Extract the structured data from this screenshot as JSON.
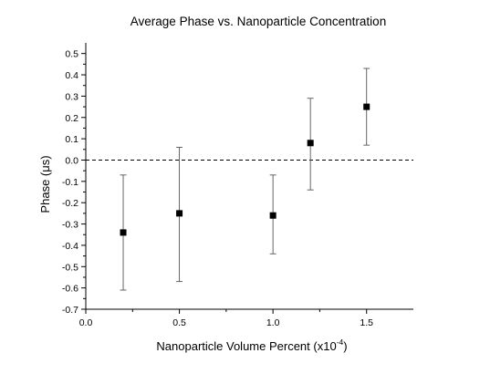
{
  "chart_data": {
    "type": "scatter",
    "title": "Average Phase vs. Nanoparticle Concentration",
    "xlabel_main": "Nanoparticle Volume Percent (x10",
    "xlabel_sup": "-4",
    "xlabel_close": ")",
    "ylabel": "Phase (μs)",
    "xlim": [
      0.0,
      1.75
    ],
    "ylim": [
      -0.7,
      0.55
    ],
    "x_ticks": [
      0.0,
      0.5,
      1.0,
      1.5
    ],
    "x_tick_labels": [
      "0.0",
      "0.5",
      "1.0",
      "1.5"
    ],
    "y_ticks": [
      -0.7,
      -0.6,
      -0.5,
      -0.4,
      -0.3,
      -0.2,
      -0.1,
      0.0,
      0.1,
      0.2,
      0.3,
      0.4,
      0.5
    ],
    "y_tick_labels": [
      "-0.7",
      "-0.6",
      "-0.5",
      "-0.4",
      "-0.3",
      "-0.2",
      "-0.1",
      "0.0",
      "0.1",
      "0.2",
      "0.3",
      "0.4",
      "0.5"
    ],
    "reference_line": {
      "y": 0.0,
      "style": "dashed"
    },
    "grid": false,
    "points": [
      {
        "x": 0.2,
        "y": -0.34,
        "y_low": -0.61,
        "y_high": -0.07
      },
      {
        "x": 0.5,
        "y": -0.25,
        "y_low": -0.57,
        "y_high": 0.06
      },
      {
        "x": 1.0,
        "y": -0.26,
        "y_low": -0.44,
        "y_high": -0.07
      },
      {
        "x": 1.2,
        "y": 0.08,
        "y_low": -0.14,
        "y_high": 0.29
      },
      {
        "x": 1.5,
        "y": 0.25,
        "y_low": 0.07,
        "y_high": 0.43
      }
    ],
    "marker": "square",
    "colors": {
      "marker": "#000000",
      "errorbar": "#555555",
      "axis": "#000000"
    }
  }
}
